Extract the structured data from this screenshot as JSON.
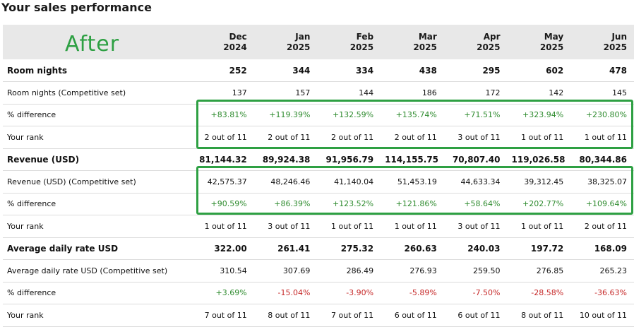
{
  "title": "Your sales performance",
  "overlay_label": "After",
  "colors": {
    "positive": "#2e8b2e",
    "negative": "#c62828",
    "highlight": "#2ea043",
    "header_bg": "#e8e8e8"
  },
  "header": {
    "months": [
      {
        "month": "Dec",
        "year": "2024"
      },
      {
        "month": "Jan",
        "year": "2025"
      },
      {
        "month": "Feb",
        "year": "2025"
      },
      {
        "month": "Mar",
        "year": "2025"
      },
      {
        "month": "Apr",
        "year": "2025"
      },
      {
        "month": "May",
        "year": "2025"
      },
      {
        "month": "Jun",
        "year": "2025"
      }
    ]
  },
  "rows": [
    {
      "label": "Room nights",
      "bold": true,
      "values": [
        "252",
        "344",
        "334",
        "438",
        "295",
        "602",
        "478"
      ]
    },
    {
      "label": "Room nights (Competitive set)",
      "values": [
        "137",
        "157",
        "144",
        "186",
        "172",
        "142",
        "145"
      ]
    },
    {
      "label": "% difference",
      "values": [
        "+83.81%",
        "+119.39%",
        "+132.59%",
        "+135.74%",
        "+71.51%",
        "+323.94%",
        "+230.80%"
      ]
    },
    {
      "label": "Your rank",
      "values": [
        "2 out of 11",
        "2 out of 11",
        "2 out of 11",
        "2 out of 11",
        "3 out of 11",
        "1 out of 11",
        "1 out of 11"
      ]
    },
    {
      "label": "Revenue (USD)",
      "bold": true,
      "values": [
        "81,144.32",
        "89,924.38",
        "91,956.79",
        "114,155.75",
        "70,807.40",
        "119,026.58",
        "80,344.86"
      ]
    },
    {
      "label": "Revenue (USD) (Competitive set)",
      "values": [
        "42,575.37",
        "48,246.46",
        "41,140.04",
        "51,453.19",
        "44,633.34",
        "39,312.45",
        "38,325.07"
      ]
    },
    {
      "label": "% difference",
      "values": [
        "+90.59%",
        "+86.39%",
        "+123.52%",
        "+121.86%",
        "+58.64%",
        "+202.77%",
        "+109.64%"
      ]
    },
    {
      "label": "Your rank",
      "values": [
        "1 out of 11",
        "3 out of 11",
        "1 out of 11",
        "1 out of 11",
        "3 out of 11",
        "1 out of 11",
        "2 out of 11"
      ]
    },
    {
      "label": "Average daily rate USD",
      "bold": true,
      "values": [
        "322.00",
        "261.41",
        "275.32",
        "260.63",
        "240.03",
        "197.72",
        "168.09"
      ]
    },
    {
      "label": "Average daily rate USD (Competitive set)",
      "values": [
        "310.54",
        "307.69",
        "286.49",
        "276.93",
        "259.50",
        "276.85",
        "265.23"
      ]
    },
    {
      "label": "% difference",
      "values": [
        "+3.69%",
        "-15.04%",
        "-3.90%",
        "-5.89%",
        "-7.50%",
        "-28.58%",
        "-36.63%"
      ]
    },
    {
      "label": "Your rank",
      "values": [
        "7 out of 11",
        "8 out of 11",
        "7 out of 11",
        "6 out of 11",
        "6 out of 11",
        "8 out of 11",
        "10 out of 11"
      ]
    }
  ]
}
